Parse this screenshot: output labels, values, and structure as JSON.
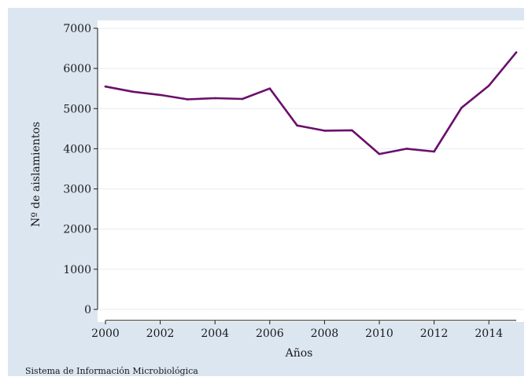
{
  "chart_data": {
    "type": "line",
    "title": "",
    "xlabel": "Años",
    "ylabel": "Nº de aislamientos",
    "note": "Sistema de Información Microbiológica",
    "x": [
      2000,
      2001,
      2002,
      2003,
      2004,
      2005,
      2006,
      2007,
      2008,
      2009,
      2010,
      2011,
      2012,
      2013,
      2014,
      2015
    ],
    "series": [
      {
        "values": [
          5550,
          5420,
          5340,
          5230,
          5260,
          5240,
          5500,
          4580,
          4450,
          4460,
          3870,
          4000,
          3930,
          5020,
          5570,
          6400
        ],
        "color": "#6b0f6b"
      }
    ],
    "xticks": [
      2000,
      2002,
      2004,
      2006,
      2008,
      2010,
      2012,
      2014
    ],
    "xtick_labels": [
      "2000",
      "2002",
      "2004",
      "2006",
      "2008",
      "2010",
      "2012",
      "2014"
    ],
    "yticks": [
      0,
      1000,
      2000,
      3000,
      4000,
      5000,
      6000,
      7000
    ],
    "ytick_labels": [
      "0",
      "1000",
      "2000",
      "3000",
      "4000",
      "5000",
      "6000",
      "7000"
    ],
    "xlim": [
      2000,
      2015
    ],
    "ylim": [
      0,
      7000
    ],
    "grid": true,
    "colors": {
      "background": "#dce6f1",
      "plot_area": "#ffffff",
      "gridline": "#e6ebf2",
      "axis": "#1a1a1a"
    }
  }
}
